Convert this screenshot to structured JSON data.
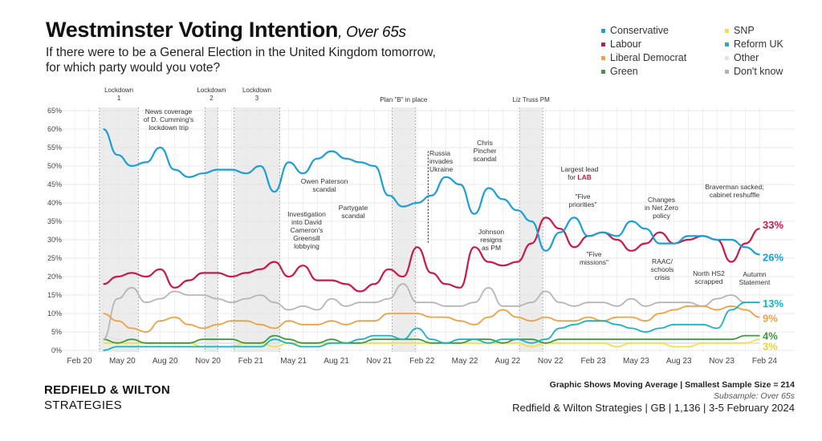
{
  "header": {
    "title": "Westminster Voting Intention",
    "title_suffix": ", Over 65s",
    "question_line1": "If there were to be a General Election in the United Kingdom tomorrow,",
    "question_line2": "for which party would you vote?"
  },
  "legend": [
    {
      "label": "Conservative",
      "color": "#1a9fd6"
    },
    {
      "label": "Labour",
      "color": "#c8194b"
    },
    {
      "label": "Liberal Democrat",
      "color": "#f0a040"
    },
    {
      "label": "Green",
      "color": "#3c9a3c"
    },
    {
      "label": "SNP",
      "color": "#f2e04a"
    },
    {
      "label": "Reform UK",
      "color": "#16b3c3"
    },
    {
      "label": "Other",
      "color": "#e2e2e2"
    },
    {
      "label": "Don't know",
      "color": "#b5b5b5"
    }
  ],
  "chart_data": {
    "type": "line",
    "ylabel": "",
    "xlabel": "",
    "ylim": [
      0,
      65
    ],
    "yticks": [
      "0%",
      "5%",
      "10%",
      "15%",
      "20%",
      "25%",
      "30%",
      "35%",
      "40%",
      "45%",
      "50%",
      "55%",
      "60%",
      "65%"
    ],
    "xticks": [
      "Feb 20",
      "May 20",
      "Aug 20",
      "Nov 20",
      "Feb 21",
      "May 21",
      "Aug 21",
      "Nov 21",
      "Feb 22",
      "May 22",
      "Aug 22",
      "Nov 22",
      "Feb 23",
      "May 23",
      "Aug 23",
      "Nov 23",
      "Feb 24"
    ],
    "grid": true,
    "x_start": "2020-04",
    "x_end": "2024-02",
    "series": [
      {
        "name": "Conservative",
        "color": "#1a9fd6",
        "end_label": "26%",
        "values": [
          60,
          53,
          50,
          51,
          55,
          49,
          47,
          48,
          49,
          49,
          48,
          50,
          43,
          51,
          48,
          52,
          54,
          52,
          51,
          50,
          42,
          39,
          40,
          42,
          47,
          45,
          37,
          44,
          41,
          38,
          35,
          27,
          32,
          36,
          31,
          32,
          31,
          35,
          33,
          29,
          29,
          31,
          31,
          30,
          30,
          28,
          26
        ]
      },
      {
        "name": "Labour",
        "color": "#c8194b",
        "end_label": "33%",
        "values": [
          18,
          20,
          21,
          20,
          22,
          17,
          19,
          21,
          21,
          20,
          21,
          22,
          24,
          20,
          23,
          19,
          19,
          18,
          16,
          18,
          22,
          20,
          28,
          21,
          18,
          17,
          28,
          24,
          23,
          24,
          29,
          36,
          33,
          28,
          31,
          32,
          30,
          27,
          29,
          32,
          29,
          30,
          31,
          30,
          24,
          29,
          33
        ]
      },
      {
        "name": "Liberal Democrat",
        "color": "#f0a040",
        "end_label": "9%",
        "values": [
          10,
          8,
          6,
          5,
          8,
          9,
          7,
          6,
          7,
          8,
          8,
          7,
          6,
          8,
          7,
          7,
          8,
          7,
          8,
          8,
          10,
          10,
          10,
          9,
          9,
          8,
          7,
          9,
          11,
          9,
          8,
          9,
          8,
          8,
          9,
          8,
          9,
          9,
          8,
          10,
          11,
          12,
          12,
          11,
          12,
          11,
          9
        ]
      },
      {
        "name": "Green",
        "color": "#3c9a3c",
        "end_label": "4%",
        "values": [
          3,
          2,
          3,
          2,
          2,
          2,
          2,
          3,
          3,
          3,
          2,
          2,
          4,
          3,
          2,
          2,
          3,
          2,
          2,
          3,
          3,
          3,
          3,
          2,
          2,
          2,
          3,
          3,
          2,
          3,
          3,
          2,
          3,
          3,
          3,
          3,
          3,
          3,
          3,
          3,
          3,
          3,
          3,
          3,
          3,
          4,
          4
        ]
      },
      {
        "name": "SNP",
        "color": "#f2e04a",
        "end_label": "3%",
        "values": [
          2,
          2,
          2,
          2,
          2,
          2,
          2,
          1,
          1,
          1,
          2,
          2,
          1,
          2,
          2,
          2,
          2,
          2,
          2,
          2,
          2,
          2,
          2,
          2,
          2,
          2,
          2,
          2,
          2,
          2,
          1,
          2,
          2,
          2,
          2,
          2,
          1,
          2,
          2,
          2,
          1,
          1,
          2,
          2,
          2,
          2,
          3
        ]
      },
      {
        "name": "Reform UK",
        "color": "#16b3c3",
        "end_label": "13%",
        "values": [
          0,
          1,
          1,
          1,
          1,
          1,
          1,
          1,
          1,
          1,
          1,
          1,
          3,
          2,
          1,
          1,
          2,
          2,
          3,
          4,
          4,
          3,
          6,
          3,
          2,
          3,
          3,
          2,
          3,
          3,
          2,
          3,
          6,
          7,
          8,
          8,
          7,
          6,
          5,
          6,
          7,
          7,
          7,
          6,
          11,
          13,
          13
        ]
      },
      {
        "name": "Other",
        "color": "#e2e2e2",
        "end_label": "",
        "values": [
          4,
          3,
          2,
          2,
          2,
          2,
          2,
          2,
          2,
          2,
          2,
          2,
          2,
          3,
          2,
          2,
          2,
          2,
          2,
          2,
          2,
          2,
          2,
          2,
          2,
          2,
          2,
          2,
          2,
          2,
          2,
          2,
          2,
          2,
          2,
          2,
          2,
          2,
          2,
          2,
          2,
          2,
          2,
          2,
          2,
          2,
          2
        ]
      },
      {
        "name": "Don't know",
        "color": "#b5b5b5",
        "end_label": "",
        "values": [
          3,
          14,
          17,
          13,
          14,
          16,
          15,
          15,
          14,
          13,
          14,
          15,
          13,
          11,
          12,
          11,
          14,
          12,
          13,
          13,
          14,
          18,
          13,
          13,
          12,
          12,
          13,
          17,
          12,
          12,
          13,
          16,
          13,
          12,
          13,
          13,
          12,
          14,
          12,
          13,
          13,
          13,
          12,
          14,
          15,
          13,
          13
        ]
      }
    ],
    "periods": [
      {
        "label_line1": "Lockdown",
        "label_line2": "1",
        "start": "2020-03-23",
        "end": "2020-06-15"
      },
      {
        "label_line1": "Lockdown",
        "label_line2": "2",
        "start": "2020-11-05",
        "end": "2020-12-02"
      },
      {
        "label_line1": "Lockdown",
        "label_line2": "3",
        "start": "2021-01-06",
        "end": "2021-04-12"
      },
      {
        "label_line1": "Plan \"B\" in place",
        "label_line2": "",
        "start": "2021-12-08",
        "end": "2022-01-27"
      },
      {
        "label_line1": "Liz Truss PM",
        "label_line2": "",
        "start": "2022-09-06",
        "end": "2022-10-25"
      }
    ],
    "events": [
      {
        "text": "News coverage\nof D. Cumming's\nlockdown trip",
        "date": "2020-05"
      },
      {
        "text": "Investigation\ninto David\nCameron's\nGreensill\nlobbying",
        "date": "2021-04"
      },
      {
        "text": "Owen Paterson\nscandal",
        "date": "2021-11"
      },
      {
        "text": "Partygate\nscandal",
        "date": "2021-12"
      },
      {
        "text": "Russia\ninvades\nUkraine",
        "date": "2022-02-24"
      },
      {
        "text": "Chris\nPincher\nscandal",
        "date": "2022-07"
      },
      {
        "text": "Johnson\nresigns\nas PM",
        "date": "2022-07"
      },
      {
        "text": "Largest lead\nfor ",
        "highlight": "LAB",
        "date": "2022-10"
      },
      {
        "text": "\"Five\npriorities\"",
        "date": "2023-01"
      },
      {
        "text": "\"Five\nmissions\"",
        "date": "2023-02"
      },
      {
        "text": "Changes\nin Net Zero\npolicy",
        "date": "2023-09"
      },
      {
        "text": "RAAC/\nschools\ncrisis",
        "date": "2023-09"
      },
      {
        "text": "North HS2\nscrapped",
        "date": "2023-10"
      },
      {
        "text": "Autumn\nStatement",
        "date": "2023-11"
      },
      {
        "text": "Braverman sacked;\ncabinet reshuffle",
        "date": "2023-11"
      }
    ]
  },
  "footer": {
    "brand_line1": "REDFIELD & WILTON",
    "brand_line2": "STRATEGIES",
    "note": "Graphic Shows Moving Average | Smallest Sample Size = 214",
    "subsample": "Subsample: Over 65s",
    "source": "Redfield & Wilton Strategies | GB | 1,136 | 3-5 February 2024"
  }
}
